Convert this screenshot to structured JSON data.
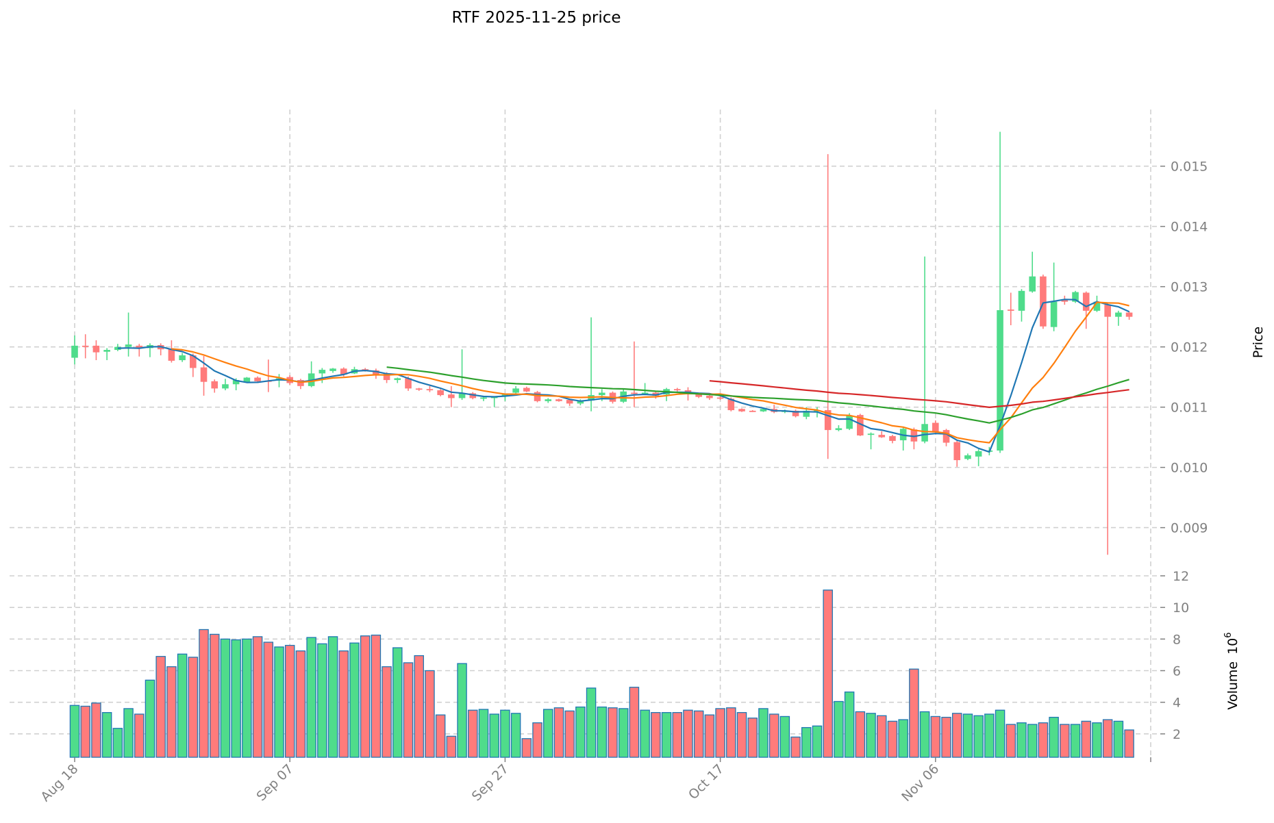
{
  "chart_data": {
    "type": "candlestick",
    "title": "RTF  2025-11-25  price",
    "start_date": "Aug 18",
    "x_tick_labels": [
      "Aug 18",
      "Sep 07",
      "Sep 27",
      "Oct 17",
      "Nov 06"
    ],
    "x_tick_days": [
      0,
      20,
      40,
      60,
      80,
      100
    ],
    "ylabel": "Price",
    "ylim": [
      0.0082,
      0.01594
    ],
    "y_ticks": [
      "0.009",
      "0.010",
      "0.011",
      "0.012",
      "0.013",
      "0.014",
      "0.015"
    ],
    "volume_label": "Volume",
    "volume_exponent_base": "10",
    "volume_exponent": "6",
    "volume_ylim": [
      0.52,
      12
    ],
    "volume_ticks": [
      "2",
      "4",
      "6",
      "8",
      "10",
      "12"
    ],
    "moving_averages": [
      {
        "period": 5,
        "color": "#1f77b4"
      },
      {
        "period": 10,
        "color": "#ff7f0e"
      },
      {
        "period": 30,
        "color": "#2ca02c"
      },
      {
        "period": 60,
        "color": "#d62728"
      }
    ],
    "colors": {
      "up": "#4fdc8b",
      "down": "#ff7b7b",
      "volume_edge": "#1f77b4"
    },
    "ohlc": [
      [
        0.01182,
        0.01219,
        0.01171,
        0.01202
      ],
      [
        0.01202,
        0.01221,
        0.01181,
        0.01201
      ],
      [
        0.01202,
        0.01211,
        0.01178,
        0.01191
      ],
      [
        0.01192,
        0.01198,
        0.01178,
        0.01195
      ],
      [
        0.01195,
        0.01205,
        0.01193,
        0.012
      ],
      [
        0.012,
        0.01257,
        0.01184,
        0.01204
      ],
      [
        0.01202,
        0.01205,
        0.01184,
        0.01199
      ],
      [
        0.01198,
        0.01206,
        0.01183,
        0.01203
      ],
      [
        0.01203,
        0.01206,
        0.01186,
        0.01196
      ],
      [
        0.01197,
        0.01211,
        0.01174,
        0.01177
      ],
      [
        0.01178,
        0.0119,
        0.01175,
        0.01186
      ],
      [
        0.01186,
        0.01189,
        0.0115,
        0.01165
      ],
      [
        0.01166,
        0.01185,
        0.01119,
        0.01142
      ],
      [
        0.01143,
        0.01146,
        0.01124,
        0.01131
      ],
      [
        0.01131,
        0.01147,
        0.01128,
        0.01138
      ],
      [
        0.01138,
        0.01148,
        0.01128,
        0.01145
      ],
      [
        0.01142,
        0.0115,
        0.0114,
        0.01149
      ],
      [
        0.01149,
        0.01151,
        0.0114,
        0.01143
      ],
      [
        0.01144,
        0.01179,
        0.01125,
        0.01143
      ],
      [
        0.01144,
        0.01155,
        0.01133,
        0.01148
      ],
      [
        0.0115,
        0.01153,
        0.01137,
        0.0114
      ],
      [
        0.01145,
        0.01147,
        0.0113,
        0.01135
      ],
      [
        0.01135,
        0.01176,
        0.01133,
        0.01156
      ],
      [
        0.01156,
        0.01165,
        0.0114,
        0.01162
      ],
      [
        0.0116,
        0.01165,
        0.01157,
        0.01164
      ],
      [
        0.01164,
        0.01166,
        0.01151,
        0.01154
      ],
      [
        0.01156,
        0.01167,
        0.01155,
        0.01163
      ],
      [
        0.01163,
        0.01165,
        0.01159,
        0.01161
      ],
      [
        0.01161,
        0.01164,
        0.01147,
        0.01154
      ],
      [
        0.01156,
        0.01158,
        0.0114,
        0.01145
      ],
      [
        0.01145,
        0.01149,
        0.0114,
        0.01148
      ],
      [
        0.01148,
        0.01151,
        0.01127,
        0.01131
      ],
      [
        0.01131,
        0.01132,
        0.01127,
        0.01129
      ],
      [
        0.0113,
        0.01135,
        0.01125,
        0.01129
      ],
      [
        0.01128,
        0.0113,
        0.01118,
        0.0112
      ],
      [
        0.01121,
        0.01135,
        0.011,
        0.01115
      ],
      [
        0.01115,
        0.01196,
        0.01112,
        0.01123
      ],
      [
        0.01123,
        0.01125,
        0.01113,
        0.01115
      ],
      [
        0.01114,
        0.01118,
        0.0111,
        0.01116
      ],
      [
        0.01116,
        0.01118,
        0.011,
        0.01117
      ],
      [
        0.01119,
        0.01122,
        0.0111,
        0.01121
      ],
      [
        0.01124,
        0.01135,
        0.0112,
        0.01131
      ],
      [
        0.01132,
        0.01134,
        0.01125,
        0.01126
      ],
      [
        0.01125,
        0.01127,
        0.01108,
        0.0111
      ],
      [
        0.0111,
        0.01115,
        0.01107,
        0.01113
      ],
      [
        0.01113,
        0.01114,
        0.01109,
        0.0111
      ],
      [
        0.01112,
        0.01113,
        0.01102,
        0.01106
      ],
      [
        0.01106,
        0.01113,
        0.01103,
        0.01111
      ],
      [
        0.01111,
        0.01249,
        0.01093,
        0.0112
      ],
      [
        0.0112,
        0.0113,
        0.0111,
        0.01124
      ],
      [
        0.01124,
        0.01126,
        0.01106,
        0.01109
      ],
      [
        0.01109,
        0.0113,
        0.01107,
        0.01126
      ],
      [
        0.01124,
        0.01209,
        0.011,
        0.01123
      ],
      [
        0.01122,
        0.0114,
        0.0112,
        0.01124
      ],
      [
        0.01124,
        0.01126,
        0.01114,
        0.01119
      ],
      [
        0.01121,
        0.01132,
        0.0111,
        0.0113
      ],
      [
        0.0113,
        0.01132,
        0.01126,
        0.01128
      ],
      [
        0.01128,
        0.01133,
        0.01111,
        0.01122
      ],
      [
        0.01121,
        0.01123,
        0.01115,
        0.01117
      ],
      [
        0.01119,
        0.0112,
        0.01112,
        0.01115
      ],
      [
        0.01116,
        0.01118,
        0.01112,
        0.01114
      ],
      [
        0.01114,
        0.01116,
        0.01093,
        0.01095
      ],
      [
        0.01097,
        0.01098,
        0.01092,
        0.01093
      ],
      [
        0.01094,
        0.01095,
        0.01092,
        0.01093
      ],
      [
        0.01093,
        0.01099,
        0.01092,
        0.01097
      ],
      [
        0.01097,
        0.01104,
        0.0109,
        0.01092
      ],
      [
        0.01092,
        0.01096,
        0.0109,
        0.01094
      ],
      [
        0.01094,
        0.01096,
        0.01083,
        0.01085
      ],
      [
        0.01084,
        0.011,
        0.0108,
        0.01094
      ],
      [
        0.01094,
        0.011,
        0.01083,
        0.01095
      ],
      [
        0.01095,
        0.0152,
        0.01014,
        0.01062
      ],
      [
        0.01062,
        0.0107,
        0.0106,
        0.01065
      ],
      [
        0.01064,
        0.0109,
        0.01062,
        0.01086
      ],
      [
        0.01087,
        0.01089,
        0.01052,
        0.01053
      ],
      [
        0.01055,
        0.01058,
        0.0103,
        0.01056
      ],
      [
        0.01054,
        0.0106,
        0.01049,
        0.0105
      ],
      [
        0.01052,
        0.01054,
        0.0104,
        0.01044
      ],
      [
        0.01045,
        0.01066,
        0.01028,
        0.01064
      ],
      [
        0.01063,
        0.01066,
        0.0103,
        0.01043
      ],
      [
        0.01043,
        0.0135,
        0.0104,
        0.01072
      ],
      [
        0.01074,
        0.01078,
        0.01056,
        0.01058
      ],
      [
        0.01062,
        0.01064,
        0.01035,
        0.01041
      ],
      [
        0.01042,
        0.01044,
        0.01001,
        0.01012
      ],
      [
        0.01014,
        0.01023,
        0.01012,
        0.0102
      ],
      [
        0.01018,
        0.0103,
        0.01002,
        0.01027
      ],
      [
        0.01026,
        0.01034,
        0.0102,
        0.01028
      ],
      [
        0.01028,
        0.01557,
        0.01024,
        0.01261
      ],
      [
        0.01262,
        0.0129,
        0.01236,
        0.0126
      ],
      [
        0.0126,
        0.01296,
        0.01242,
        0.01293
      ],
      [
        0.01292,
        0.01358,
        0.0129,
        0.01317
      ],
      [
        0.01317,
        0.0132,
        0.0123,
        0.01234
      ],
      [
        0.01233,
        0.0134,
        0.01226,
        0.01275
      ],
      [
        0.01278,
        0.01285,
        0.0127,
        0.01275
      ],
      [
        0.01275,
        0.01293,
        0.01273,
        0.01291
      ],
      [
        0.0129,
        0.01292,
        0.0123,
        0.0126
      ],
      [
        0.0126,
        0.01285,
        0.01258,
        0.01275
      ],
      [
        0.0127,
        0.01272,
        0.00855,
        0.0125
      ],
      [
        0.0125,
        0.0126,
        0.01235,
        0.01257
      ],
      [
        0.01257,
        0.01259,
        0.01245,
        0.0125
      ]
    ],
    "volume": [
      3.8,
      3.75,
      3.95,
      3.35,
      2.35,
      3.6,
      3.25,
      5.4,
      6.9,
      6.25,
      7.05,
      6.85,
      8.6,
      8.3,
      8.0,
      7.95,
      8.0,
      8.15,
      7.8,
      7.5,
      7.6,
      7.25,
      8.1,
      7.7,
      8.15,
      7.25,
      7.75,
      8.2,
      8.25,
      6.25,
      7.45,
      6.5,
      6.95,
      6.0,
      3.2,
      1.85,
      6.45,
      3.5,
      3.55,
      3.25,
      3.5,
      3.3,
      1.7,
      2.7,
      3.55,
      3.65,
      3.45,
      3.7,
      4.9,
      3.7,
      3.65,
      3.6,
      4.95,
      3.5,
      3.35,
      3.35,
      3.35,
      3.5,
      3.45,
      3.2,
      3.6,
      3.65,
      3.35,
      3.0,
      3.6,
      3.25,
      3.1,
      1.8,
      2.4,
      2.5,
      11.1,
      4.05,
      4.65,
      3.4,
      3.3,
      3.15,
      2.8,
      2.9,
      6.1,
      3.4,
      3.1,
      3.05,
      3.3,
      3.25,
      3.15,
      3.25,
      3.5,
      2.6,
      2.7,
      2.6,
      2.7,
      3.05,
      2.6,
      2.6,
      2.8,
      2.7,
      2.9,
      2.8,
      2.25
    ]
  }
}
